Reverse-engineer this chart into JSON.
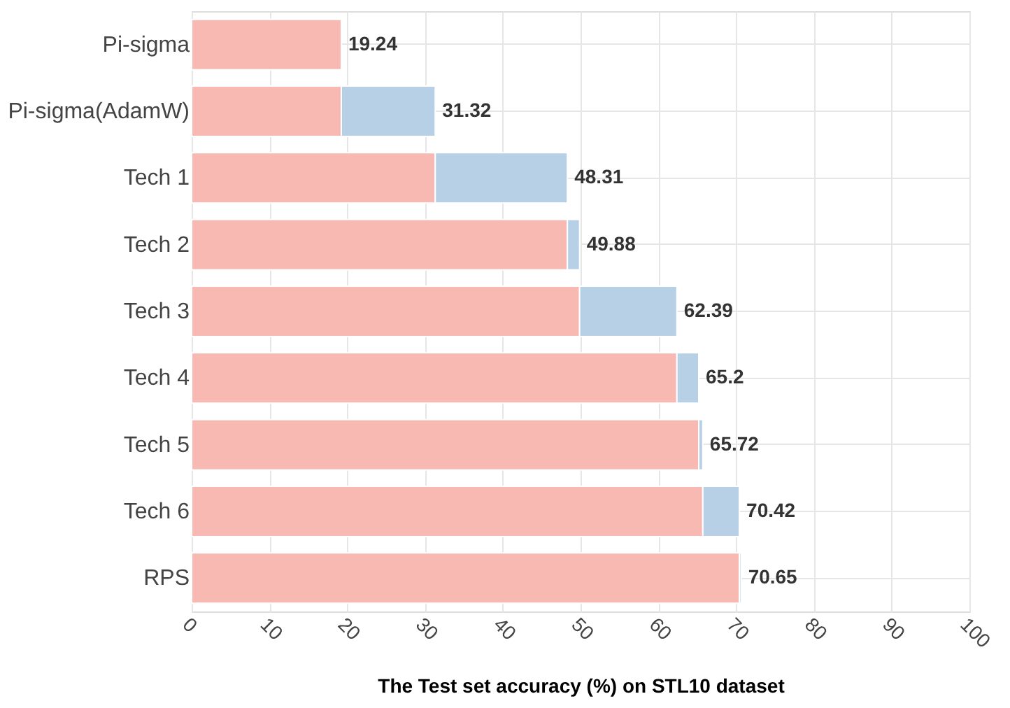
{
  "chart_data": {
    "type": "bar",
    "orientation": "horizontal",
    "stacked": true,
    "xlabel": "The Test set accuracy (%) on STL10 dataset",
    "categories": [
      "Pi-sigma",
      "Pi-sigma(AdamW)",
      "Tech 1",
      "Tech 2",
      "Tech 3",
      "Tech 4",
      "Tech 5",
      "Tech 6",
      "RPS"
    ],
    "series": [
      {
        "color": "#f8b9b3",
        "values": [
          19.24,
          19.24,
          31.32,
          48.31,
          49.88,
          62.39,
          65.2,
          65.72,
          70.42
        ]
      },
      {
        "color": "#b8d0e6",
        "values": [
          null,
          12.08,
          16.99,
          1.57,
          12.51,
          2.81,
          0.52,
          4.7,
          0.23
        ]
      }
    ],
    "totals": [
      "19.24",
      "31.32",
      "48.31",
      "49.88",
      "62.39",
      "65.2",
      "65.72",
      "70.42",
      "70.65"
    ],
    "xlim": [
      0,
      100
    ],
    "xticks": [
      0,
      10,
      20,
      30,
      40,
      50,
      60,
      70,
      80,
      90,
      100
    ],
    "grid": true
  }
}
